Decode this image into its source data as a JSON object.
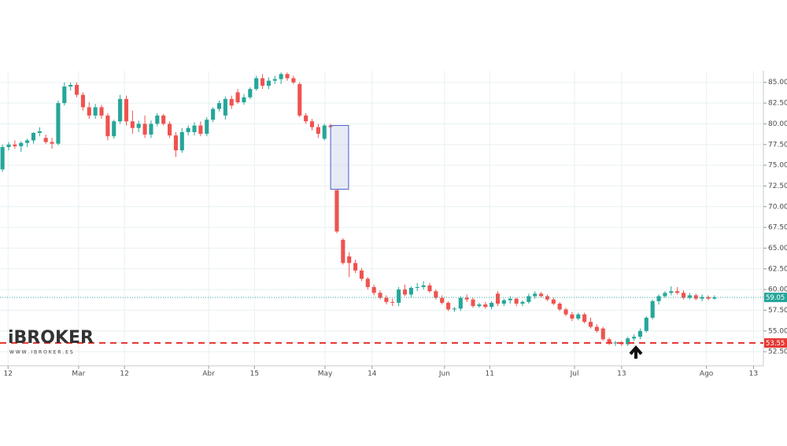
{
  "chart_data": {
    "type": "candlestick",
    "up_color": "#26a69a",
    "down_color": "#ef5350",
    "ylim": [
      50.8,
      86.4
    ],
    "yticks": [
      {
        "value": 52.5,
        "label": "52.50"
      },
      {
        "value": 55,
        "label": "55.00"
      },
      {
        "value": 57.5,
        "label": "57.50"
      },
      {
        "value": 60,
        "label": "60.00"
      },
      {
        "value": 62.5,
        "label": "62.50"
      },
      {
        "value": 65,
        "label": "65.00"
      },
      {
        "value": 67.5,
        "label": "67.50"
      },
      {
        "value": 70,
        "label": "70.00"
      },
      {
        "value": 72.5,
        "label": "72.50"
      },
      {
        "value": 75,
        "label": "75.00"
      },
      {
        "value": 77.5,
        "label": "77.50"
      },
      {
        "value": 80,
        "label": "80.00"
      },
      {
        "value": 82.5,
        "label": "82.50"
      },
      {
        "value": 85,
        "label": "85.00"
      }
    ],
    "xlim": [
      -0.4,
      122.9
    ],
    "xticks": [
      {
        "value": 0.9,
        "label": "12"
      },
      {
        "value": 12.3,
        "label": "Mar"
      },
      {
        "value": 19.7,
        "label": "12"
      },
      {
        "value": 33.3,
        "label": "Abr"
      },
      {
        "value": 40.7,
        "label": "15"
      },
      {
        "value": 52.1,
        "label": "May"
      },
      {
        "value": 59.7,
        "label": "14"
      },
      {
        "value": 71.4,
        "label": "Jun"
      },
      {
        "value": 78.7,
        "label": "11"
      },
      {
        "value": 92.4,
        "label": "Jul"
      },
      {
        "value": 100,
        "label": "13"
      },
      {
        "value": 113.7,
        "label": "Ago"
      },
      {
        "value": 121.3,
        "label": "13"
      }
    ],
    "grid": true,
    "price_lines": [
      {
        "value": 59.05,
        "color": "#26a69a",
        "style": "dotted"
      },
      {
        "value": 53.55,
        "color": "#e53935",
        "style": "dashed"
      }
    ],
    "annotation_box": {
      "x": [
        53,
        55.9
      ],
      "y": [
        72.1,
        79.8
      ]
    },
    "logo": {
      "name": "iBROKER",
      "url": "W W W . I B R O K E R . E S"
    },
    "candles": [
      [
        74.5,
        77.5,
        74.2,
        77.2
      ],
      [
        77.2,
        77.8,
        76.8,
        77.5
      ],
      [
        77.5,
        78,
        77,
        77.3
      ],
      [
        77.3,
        77.9,
        76.6,
        77.7
      ],
      [
        77.7,
        78.2,
        77.2,
        78.0
      ],
      [
        78.0,
        79.0,
        77.6,
        78.9
      ],
      [
        78.9,
        79.6,
        78.5,
        79.1
      ],
      [
        78.3,
        78.7,
        77.6,
        77.8
      ],
      [
        77.8,
        78.3,
        77.0,
        77.6
      ],
      [
        77.6,
        82.8,
        77.4,
        82.5
      ],
      [
        82.5,
        85.0,
        82.2,
        84.5
      ],
      [
        84.5,
        85.0,
        84.0,
        84.7
      ],
      [
        84.7,
        85.0,
        83.2,
        83.5
      ],
      [
        83.5,
        83.8,
        81.6,
        82.0
      ],
      [
        82.0,
        82.6,
        80.6,
        81.0
      ],
      [
        81.0,
        82.4,
        80.6,
        82.0
      ],
      [
        82.0,
        82.3,
        80.6,
        81.0
      ],
      [
        81.0,
        81.3,
        78.0,
        78.5
      ],
      [
        78.5,
        80.5,
        78.2,
        80.3
      ],
      [
        80.3,
        83.5,
        80.0,
        83.0
      ],
      [
        83.0,
        83.4,
        79.8,
        80.3
      ],
      [
        80.3,
        81.6,
        78.8,
        79.5
      ],
      [
        79.5,
        80.4,
        79.0,
        80.0
      ],
      [
        80.0,
        81.0,
        78.3,
        78.7
      ],
      [
        78.7,
        80.4,
        78.3,
        80.0
      ],
      [
        80.0,
        81.3,
        79.7,
        81.0
      ],
      [
        81.0,
        81.2,
        79.8,
        80.0
      ],
      [
        80.0,
        80.3,
        78.3,
        78.6
      ],
      [
        78.6,
        79.0,
        76.0,
        76.8
      ],
      [
        76.8,
        79.5,
        76.5,
        79.0
      ],
      [
        79.0,
        79.8,
        78.6,
        79.5
      ],
      [
        79.0,
        80.2,
        78.6,
        79.8
      ],
      [
        79.8,
        80.3,
        78.5,
        78.8
      ],
      [
        78.8,
        80.8,
        78.5,
        80.5
      ],
      [
        80.5,
        82.0,
        80.2,
        81.8
      ],
      [
        81.8,
        82.8,
        81.5,
        82.5
      ],
      [
        81.0,
        83.3,
        80.5,
        83.0
      ],
      [
        83.0,
        83.4,
        81.8,
        82.2
      ],
      [
        83.8,
        84.2,
        82.4,
        82.6
      ],
      [
        82.6,
        83.6,
        82.3,
        83.2
      ],
      [
        83.2,
        84.4,
        83.0,
        84.2
      ],
      [
        84.2,
        85.8,
        84.0,
        85.5
      ],
      [
        85.5,
        86.0,
        84.2,
        84.6
      ],
      [
        84.6,
        85.6,
        84.2,
        85.2
      ],
      [
        85.2,
        85.8,
        84.8,
        85.4
      ],
      [
        85.4,
        86.2,
        84.8,
        86.0
      ],
      [
        86.0,
        86.2,
        85.2,
        85.5
      ],
      [
        85.5,
        85.8,
        84.8,
        85.0
      ],
      [
        84.8,
        85.0,
        80.8,
        81.0
      ],
      [
        81.0,
        81.3,
        80.0,
        80.3
      ],
      [
        80.3,
        80.6,
        79.2,
        79.6
      ],
      [
        79.6,
        80.0,
        78.3,
        78.8
      ],
      [
        78.2,
        80.0,
        78.0,
        79.8
      ],
      [
        79.8,
        80.0,
        79.4,
        79.6
      ],
      [
        72.0,
        72.0,
        66.8,
        67.0
      ],
      [
        66.0,
        66.2,
        63.0,
        63.2
      ],
      [
        64.0,
        64.5,
        61.5,
        63.2
      ],
      [
        63.2,
        63.6,
        62.0,
        62.3
      ],
      [
        62.3,
        62.6,
        61.0,
        61.3
      ],
      [
        61.3,
        61.5,
        60.0,
        60.3
      ],
      [
        60.3,
        60.6,
        59.3,
        59.6
      ],
      [
        59.6,
        59.9,
        58.8,
        59.0
      ],
      [
        59.0,
        59.3,
        58.2,
        58.5
      ],
      [
        58.5,
        58.9,
        58.0,
        58.4
      ],
      [
        58.4,
        60.3,
        58.0,
        60.0
      ],
      [
        60.0,
        60.6,
        59.2,
        59.4
      ],
      [
        59.4,
        60.4,
        59.0,
        60.2
      ],
      [
        60.2,
        60.8,
        59.8,
        60.3
      ],
      [
        60.3,
        61.0,
        60.0,
        60.5
      ],
      [
        60.5,
        60.8,
        59.6,
        59.8
      ],
      [
        59.8,
        60.0,
        58.8,
        59.0
      ],
      [
        59.0,
        59.3,
        58.2,
        58.4
      ],
      [
        58.4,
        58.6,
        57.4,
        57.6
      ],
      [
        57.6,
        57.9,
        57.3,
        57.7
      ],
      [
        57.7,
        59.2,
        57.4,
        59.0
      ],
      [
        59.0,
        59.4,
        58.5,
        58.8
      ],
      [
        58.8,
        59.0,
        57.8,
        58.0
      ],
      [
        58.0,
        58.4,
        57.8,
        58.2
      ],
      [
        58.2,
        58.5,
        57.7,
        57.9
      ],
      [
        57.9,
        58.6,
        57.6,
        58.4
      ],
      [
        59.5,
        59.8,
        58.0,
        58.3
      ],
      [
        58.3,
        58.9,
        58.0,
        58.7
      ],
      [
        58.7,
        59.2,
        58.3,
        58.9
      ],
      [
        58.9,
        59.0,
        58.0,
        58.3
      ],
      [
        58.3,
        58.7,
        58.0,
        58.5
      ],
      [
        58.5,
        59.5,
        58.3,
        59.2
      ],
      [
        59.2,
        59.8,
        58.9,
        59.5
      ],
      [
        59.5,
        59.7,
        59.0,
        59.2
      ],
      [
        59.2,
        59.4,
        58.6,
        58.8
      ],
      [
        58.8,
        59.0,
        58.1,
        58.3
      ],
      [
        58.3,
        58.5,
        57.4,
        57.6
      ],
      [
        57.6,
        57.8,
        56.8,
        57.0
      ],
      [
        57.0,
        57.3,
        56.2,
        56.5
      ],
      [
        56.5,
        57.2,
        56.3,
        57.0
      ],
      [
        57.0,
        57.2,
        55.9,
        56.1
      ],
      [
        56.1,
        56.6,
        55.3,
        55.5
      ],
      [
        55.5,
        55.8,
        54.8,
        55.0
      ],
      [
        55.3,
        55.5,
        53.8,
        54.0
      ],
      [
        54.0,
        54.2,
        53.3,
        53.5
      ],
      [
        53.5,
        53.8,
        53.2,
        53.6
      ],
      [
        53.6,
        53.8,
        53.2,
        53.4
      ],
      [
        53.4,
        54.3,
        53.2,
        54.1
      ],
      [
        54.1,
        54.6,
        53.8,
        54.3
      ],
      [
        54.3,
        55.3,
        54.0,
        55.0
      ],
      [
        55.0,
        56.8,
        54.8,
        56.6
      ],
      [
        56.6,
        58.8,
        56.4,
        58.6
      ],
      [
        58.6,
        59.4,
        58.2,
        59.2
      ],
      [
        59.2,
        59.8,
        59.0,
        59.6
      ],
      [
        59.6,
        60.4,
        59.3,
        59.8
      ],
      [
        59.8,
        60.3,
        59.4,
        59.6
      ],
      [
        59.6,
        59.9,
        58.8,
        59.0
      ],
      [
        59.0,
        59.6,
        58.8,
        59.3
      ],
      [
        59.3,
        59.5,
        58.7,
        58.9
      ],
      [
        58.9,
        59.4,
        58.6,
        59.1
      ],
      [
        59.1,
        59.3,
        58.7,
        58.9
      ],
      [
        58.9,
        59.3,
        58.8,
        59.05
      ]
    ]
  }
}
